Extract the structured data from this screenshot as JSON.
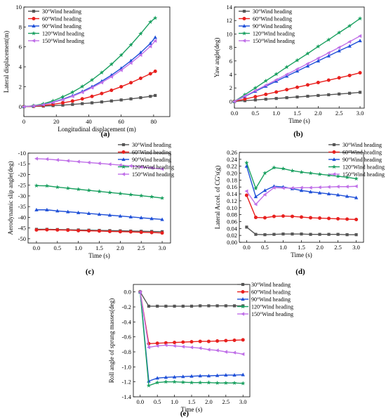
{
  "chart_data": [
    {
      "type": "line",
      "panel_label": "(a)",
      "xlabel": "Longitudinal displacement (m)",
      "ylabel": "Lateral displacement(m)",
      "xlim": [
        0,
        90
      ],
      "ylim": [
        -1,
        10
      ],
      "xticks": [
        0,
        20,
        40,
        60,
        80
      ],
      "yticks": [
        0,
        2,
        4,
        6,
        8,
        10
      ],
      "legend_position": "top-left",
      "series": [
        {
          "name": "30°Wind heading",
          "color": "#555555",
          "marker": "square",
          "x": [
            0,
            6,
            12,
            18,
            24,
            30,
            36,
            42,
            48,
            54,
            60,
            66,
            72,
            78,
            81
          ],
          "y": [
            0,
            0.02,
            0.05,
            0.1,
            0.15,
            0.22,
            0.3,
            0.38,
            0.47,
            0.57,
            0.67,
            0.78,
            0.9,
            1.03,
            1.12
          ]
        },
        {
          "name": "60°Wind heading",
          "color": "#e8201e",
          "marker": "circle",
          "x": [
            0,
            6,
            12,
            18,
            24,
            30,
            36,
            42,
            48,
            54,
            60,
            66,
            72,
            78,
            81
          ],
          "y": [
            0,
            0.04,
            0.12,
            0.23,
            0.38,
            0.56,
            0.78,
            1.03,
            1.32,
            1.64,
            2.0,
            2.4,
            2.84,
            3.3,
            3.55
          ]
        },
        {
          "name": "90°Wind heading",
          "color": "#1f50d8",
          "marker": "triangle-up",
          "x": [
            0,
            6,
            12,
            18,
            24,
            30,
            36,
            42,
            48,
            54,
            60,
            66,
            72,
            78,
            81
          ],
          "y": [
            0,
            0.07,
            0.22,
            0.45,
            0.75,
            1.1,
            1.52,
            2.0,
            2.55,
            3.16,
            3.85,
            4.6,
            5.42,
            6.35,
            6.95
          ]
        },
        {
          "name": "120°Wind heading",
          "color": "#1aa060",
          "marker": "star",
          "x": [
            0,
            6,
            12,
            18,
            24,
            30,
            36,
            42,
            48,
            54,
            60,
            66,
            72,
            78,
            81
          ],
          "y": [
            0,
            0.09,
            0.28,
            0.58,
            0.98,
            1.45,
            2.02,
            2.68,
            3.42,
            4.25,
            5.17,
            6.2,
            7.32,
            8.5,
            8.9
          ]
        },
        {
          "name": "150°Wind heading",
          "color": "#c070e8",
          "marker": "triangle-left",
          "x": [
            0,
            6,
            12,
            18,
            24,
            30,
            36,
            42,
            48,
            54,
            60,
            66,
            72,
            78,
            81
          ],
          "y": [
            0,
            0.07,
            0.2,
            0.42,
            0.7,
            1.04,
            1.44,
            1.9,
            2.42,
            3.0,
            3.66,
            4.38,
            5.18,
            6.05,
            6.6
          ]
        }
      ]
    },
    {
      "type": "line",
      "panel_label": "(b)",
      "xlabel": "Time (s)",
      "ylabel": "Yaw angle(deg)",
      "xlim": [
        0,
        3.1
      ],
      "ylim": [
        -1,
        14
      ],
      "xticks": [
        "0.0",
        "0.5",
        "1.0",
        "1.5",
        "2.0",
        "2.5",
        "3.0"
      ],
      "yticks": [
        0,
        2,
        4,
        6,
        8,
        10,
        12,
        14
      ],
      "legend_position": "top-left",
      "series": [
        {
          "name": "30°Wind heading",
          "color": "#555555",
          "marker": "square",
          "x": [
            0,
            0.25,
            0.5,
            0.75,
            1.0,
            1.25,
            1.5,
            1.75,
            2.0,
            2.25,
            2.5,
            2.75,
            3.0
          ],
          "y": [
            0,
            0.11,
            0.22,
            0.33,
            0.44,
            0.55,
            0.66,
            0.77,
            0.88,
            0.99,
            1.1,
            1.21,
            1.35
          ]
        },
        {
          "name": "60°Wind heading",
          "color": "#e8201e",
          "marker": "circle",
          "x": [
            0,
            0.25,
            0.5,
            0.75,
            1.0,
            1.25,
            1.5,
            1.75,
            2.0,
            2.25,
            2.5,
            2.75,
            3.0
          ],
          "y": [
            0,
            0.35,
            0.7,
            1.05,
            1.4,
            1.75,
            2.1,
            2.45,
            2.8,
            3.15,
            3.5,
            3.85,
            4.25
          ]
        },
        {
          "name": "90°Wind heading",
          "color": "#1f50d8",
          "marker": "triangle-up",
          "x": [
            0,
            0.25,
            0.5,
            0.75,
            1.0,
            1.25,
            1.5,
            1.75,
            2.0,
            2.25,
            2.5,
            2.75,
            3.0
          ],
          "y": [
            0,
            0.75,
            1.5,
            2.25,
            3.0,
            3.75,
            4.5,
            5.25,
            6.0,
            6.75,
            7.5,
            8.2,
            9.0
          ]
        },
        {
          "name": "120°Wind heading",
          "color": "#1aa060",
          "marker": "star",
          "x": [
            0,
            0.25,
            0.5,
            0.75,
            1.0,
            1.25,
            1.5,
            1.75,
            2.0,
            2.25,
            2.5,
            2.75,
            3.0
          ],
          "y": [
            0,
            1.0,
            2.0,
            3.05,
            4.05,
            5.1,
            6.1,
            7.1,
            8.15,
            9.15,
            10.2,
            11.2,
            12.3
          ]
        },
        {
          "name": "150°Wind heading",
          "color": "#c070e8",
          "marker": "triangle-left",
          "x": [
            0,
            0.25,
            0.5,
            0.75,
            1.0,
            1.25,
            1.5,
            1.75,
            2.0,
            2.25,
            2.5,
            2.75,
            3.0
          ],
          "y": [
            0,
            0.8,
            1.6,
            2.4,
            3.2,
            4.0,
            4.8,
            5.6,
            6.4,
            7.2,
            8.0,
            8.85,
            9.7
          ]
        }
      ]
    },
    {
      "type": "line",
      "panel_label": "(c)",
      "xlabel": "Time (s)",
      "ylabel": "Aerodynamic slip angle(deg)",
      "xlim": [
        -0.2,
        3.2
      ],
      "ylim": [
        -52,
        -10
      ],
      "xticks": [
        "0.0",
        "0.5",
        "1.0",
        "1.5",
        "2.0",
        "2.5",
        "3.0"
      ],
      "yticks": [
        -50,
        -45,
        -40,
        -35,
        -30,
        -25,
        -20,
        -15,
        -10
      ],
      "legend_position": "top-right",
      "series": [
        {
          "name": "30°Wind heading",
          "color": "#555555",
          "marker": "square",
          "x": [
            0,
            0.25,
            0.5,
            0.75,
            1.0,
            1.25,
            1.5,
            1.75,
            2.0,
            2.25,
            2.5,
            2.75,
            3.0
          ],
          "y": [
            -45.6,
            -45.6,
            -45.7,
            -45.8,
            -45.9,
            -46.0,
            -46.1,
            -46.2,
            -46.3,
            -46.4,
            -46.5,
            -46.6,
            -46.7
          ]
        },
        {
          "name": "60°Wind heading",
          "color": "#e8201e",
          "marker": "circle",
          "x": [
            0,
            0.25,
            0.5,
            0.75,
            1.0,
            1.25,
            1.5,
            1.75,
            2.0,
            2.25,
            2.5,
            2.75,
            3.0
          ],
          "y": [
            -45.9,
            -45.8,
            -45.9,
            -46.0,
            -46.2,
            -46.3,
            -46.4,
            -46.6,
            -46.7,
            -46.8,
            -47.0,
            -47.1,
            -47.3
          ]
        },
        {
          "name": "90°Wind heading",
          "color": "#1f50d8",
          "marker": "triangle-up",
          "x": [
            0,
            0.25,
            0.5,
            0.75,
            1.0,
            1.25,
            1.5,
            1.75,
            2.0,
            2.25,
            2.5,
            2.75,
            3.0
          ],
          "y": [
            -36.5,
            -36.5,
            -37.0,
            -37.4,
            -37.8,
            -38.2,
            -38.6,
            -39.0,
            -39.4,
            -39.8,
            -40.2,
            -40.6,
            -41.0
          ]
        },
        {
          "name": "120°Wind heading",
          "color": "#1aa060",
          "marker": "star",
          "x": [
            0,
            0.25,
            0.5,
            0.75,
            1.0,
            1.25,
            1.5,
            1.75,
            2.0,
            2.25,
            2.5,
            2.75,
            3.0
          ],
          "y": [
            -25.2,
            -25.3,
            -25.9,
            -26.4,
            -26.9,
            -27.4,
            -27.9,
            -28.4,
            -28.9,
            -29.4,
            -29.9,
            -30.4,
            -31.0
          ]
        },
        {
          "name": "150°Wind heading",
          "color": "#c070e8",
          "marker": "triangle-left",
          "x": [
            0,
            0.25,
            0.5,
            0.75,
            1.0,
            1.25,
            1.5,
            1.75,
            2.0,
            2.25,
            2.5,
            2.75,
            3.0
          ],
          "y": [
            -12.6,
            -12.8,
            -13.2,
            -13.6,
            -14.0,
            -14.4,
            -14.8,
            -15.2,
            -15.6,
            -16.0,
            -16.5,
            -16.9,
            -17.4
          ]
        }
      ]
    },
    {
      "type": "line",
      "panel_label": "(d)",
      "xlabel": "Time (s)",
      "ylabel": "Lateral Accel. of CG's(g)",
      "xlim": [
        -0.2,
        3.2
      ],
      "ylim": [
        0.0,
        0.26
      ],
      "xticks": [
        "0.0",
        "0.5",
        "1.0",
        "1.5",
        "2.0",
        "2.5",
        "3.0"
      ],
      "yticks": [
        "0.00",
        "0.02",
        "0.04",
        "0.06",
        "0.08",
        "0.10",
        "0.12",
        "0.14",
        "0.16",
        "0.18",
        "0.20",
        "0.22",
        "0.24",
        "0.26"
      ],
      "legend_position": "top-right",
      "series": [
        {
          "name": "30°Wind heading",
          "color": "#555555",
          "marker": "square",
          "x": [
            0,
            0.25,
            0.5,
            0.75,
            1.0,
            1.25,
            1.5,
            1.75,
            2.0,
            2.25,
            2.5,
            2.75,
            3.0
          ],
          "y": [
            0.044,
            0.023,
            0.022,
            0.023,
            0.024,
            0.024,
            0.024,
            0.023,
            0.023,
            0.023,
            0.023,
            0.022,
            0.022
          ]
        },
        {
          "name": "60°Wind heading",
          "color": "#e8201e",
          "marker": "circle",
          "x": [
            0,
            0.25,
            0.5,
            0.75,
            1.0,
            1.25,
            1.5,
            1.75,
            2.0,
            2.25,
            2.5,
            2.75,
            3.0
          ],
          "y": [
            0.136,
            0.072,
            0.071,
            0.075,
            0.076,
            0.075,
            0.073,
            0.071,
            0.07,
            0.069,
            0.068,
            0.067,
            0.066
          ]
        },
        {
          "name": "90°Wind heading",
          "color": "#1f50d8",
          "marker": "triangle-up",
          "x": [
            0,
            0.25,
            0.5,
            0.75,
            1.0,
            1.25,
            1.5,
            1.75,
            2.0,
            2.25,
            2.5,
            2.75,
            3.0
          ],
          "y": [
            0.22,
            0.132,
            0.15,
            0.162,
            0.16,
            0.155,
            0.15,
            0.146,
            0.143,
            0.14,
            0.137,
            0.133,
            0.129
          ]
        },
        {
          "name": "120°Wind heading",
          "color": "#1aa060",
          "marker": "star",
          "x": [
            0,
            0.25,
            0.5,
            0.75,
            1.0,
            1.25,
            1.5,
            1.75,
            2.0,
            2.25,
            2.5,
            2.75,
            3.0
          ],
          "y": [
            0.23,
            0.156,
            0.2,
            0.216,
            0.213,
            0.207,
            0.203,
            0.2,
            0.197,
            0.194,
            0.191,
            0.188,
            0.184
          ]
        },
        {
          "name": "150°Wind heading",
          "color": "#c070e8",
          "marker": "triangle-left",
          "x": [
            0,
            0.25,
            0.5,
            0.75,
            1.0,
            1.25,
            1.5,
            1.75,
            2.0,
            2.25,
            2.5,
            2.75,
            3.0
          ],
          "y": [
            0.148,
            0.11,
            0.138,
            0.158,
            0.157,
            0.157,
            0.158,
            0.158,
            0.159,
            0.16,
            0.161,
            0.161,
            0.162
          ]
        }
      ]
    },
    {
      "type": "line",
      "panel_label": "(e)",
      "xlabel": "Time (s)",
      "ylabel": "Roll angle of sprung masses(deg)",
      "xlim": [
        -0.2,
        3.2
      ],
      "ylim": [
        -1.4,
        0.1
      ],
      "xticks": [
        "0.0",
        "0.5",
        "1.0",
        "1.5",
        "2.0",
        "2.5",
        "3.0"
      ],
      "yticks": [
        "0.0",
        "-0.2",
        "-0.4",
        "-0.6",
        "-0.8",
        "-1.0",
        "-1.2",
        "-1.4"
      ],
      "legend_position": "top-right",
      "series": [
        {
          "name": "30°Wind heading",
          "color": "#555555",
          "marker": "square",
          "x": [
            0,
            0.25,
            0.5,
            0.75,
            1.0,
            1.25,
            1.5,
            1.75,
            2.0,
            2.25,
            2.5,
            2.75,
            3.0
          ],
          "y": [
            0,
            -0.19,
            -0.19,
            -0.19,
            -0.19,
            -0.19,
            -0.19,
            -0.185,
            -0.185,
            -0.185,
            -0.185,
            -0.185,
            -0.185
          ]
        },
        {
          "name": "60°Wind heading",
          "color": "#e8201e",
          "marker": "circle",
          "x": [
            0,
            0.25,
            0.5,
            0.75,
            1.0,
            1.25,
            1.5,
            1.75,
            2.0,
            2.25,
            2.5,
            2.75,
            3.0
          ],
          "y": [
            0,
            -0.69,
            -0.685,
            -0.68,
            -0.675,
            -0.67,
            -0.665,
            -0.66,
            -0.66,
            -0.655,
            -0.65,
            -0.645,
            -0.64
          ]
        },
        {
          "name": "90°Wind heading",
          "color": "#1f50d8",
          "marker": "triangle-up",
          "x": [
            0,
            0.25,
            0.5,
            0.75,
            1.0,
            1.25,
            1.5,
            1.75,
            2.0,
            2.25,
            2.5,
            2.75,
            3.0
          ],
          "y": [
            0,
            -1.19,
            -1.15,
            -1.14,
            -1.135,
            -1.13,
            -1.125,
            -1.12,
            -1.12,
            -1.115,
            -1.11,
            -1.11,
            -1.105
          ]
        },
        {
          "name": "120°Wind heading",
          "color": "#1aa060",
          "marker": "star",
          "x": [
            0,
            0.25,
            0.5,
            0.75,
            1.0,
            1.25,
            1.5,
            1.75,
            2.0,
            2.25,
            2.5,
            2.75,
            3.0
          ],
          "y": [
            0,
            -1.25,
            -1.21,
            -1.2,
            -1.2,
            -1.205,
            -1.21,
            -1.21,
            -1.21,
            -1.215,
            -1.215,
            -1.215,
            -1.22
          ]
        },
        {
          "name": "150°Wind heading",
          "color": "#c070e8",
          "marker": "triangle-left",
          "x": [
            0,
            0.25,
            0.5,
            0.75,
            1.0,
            1.25,
            1.5,
            1.75,
            2.0,
            2.25,
            2.5,
            2.75,
            3.0
          ],
          "y": [
            0,
            -0.74,
            -0.72,
            -0.71,
            -0.72,
            -0.73,
            -0.74,
            -0.75,
            -0.77,
            -0.78,
            -0.8,
            -0.81,
            -0.83
          ]
        }
      ]
    }
  ]
}
